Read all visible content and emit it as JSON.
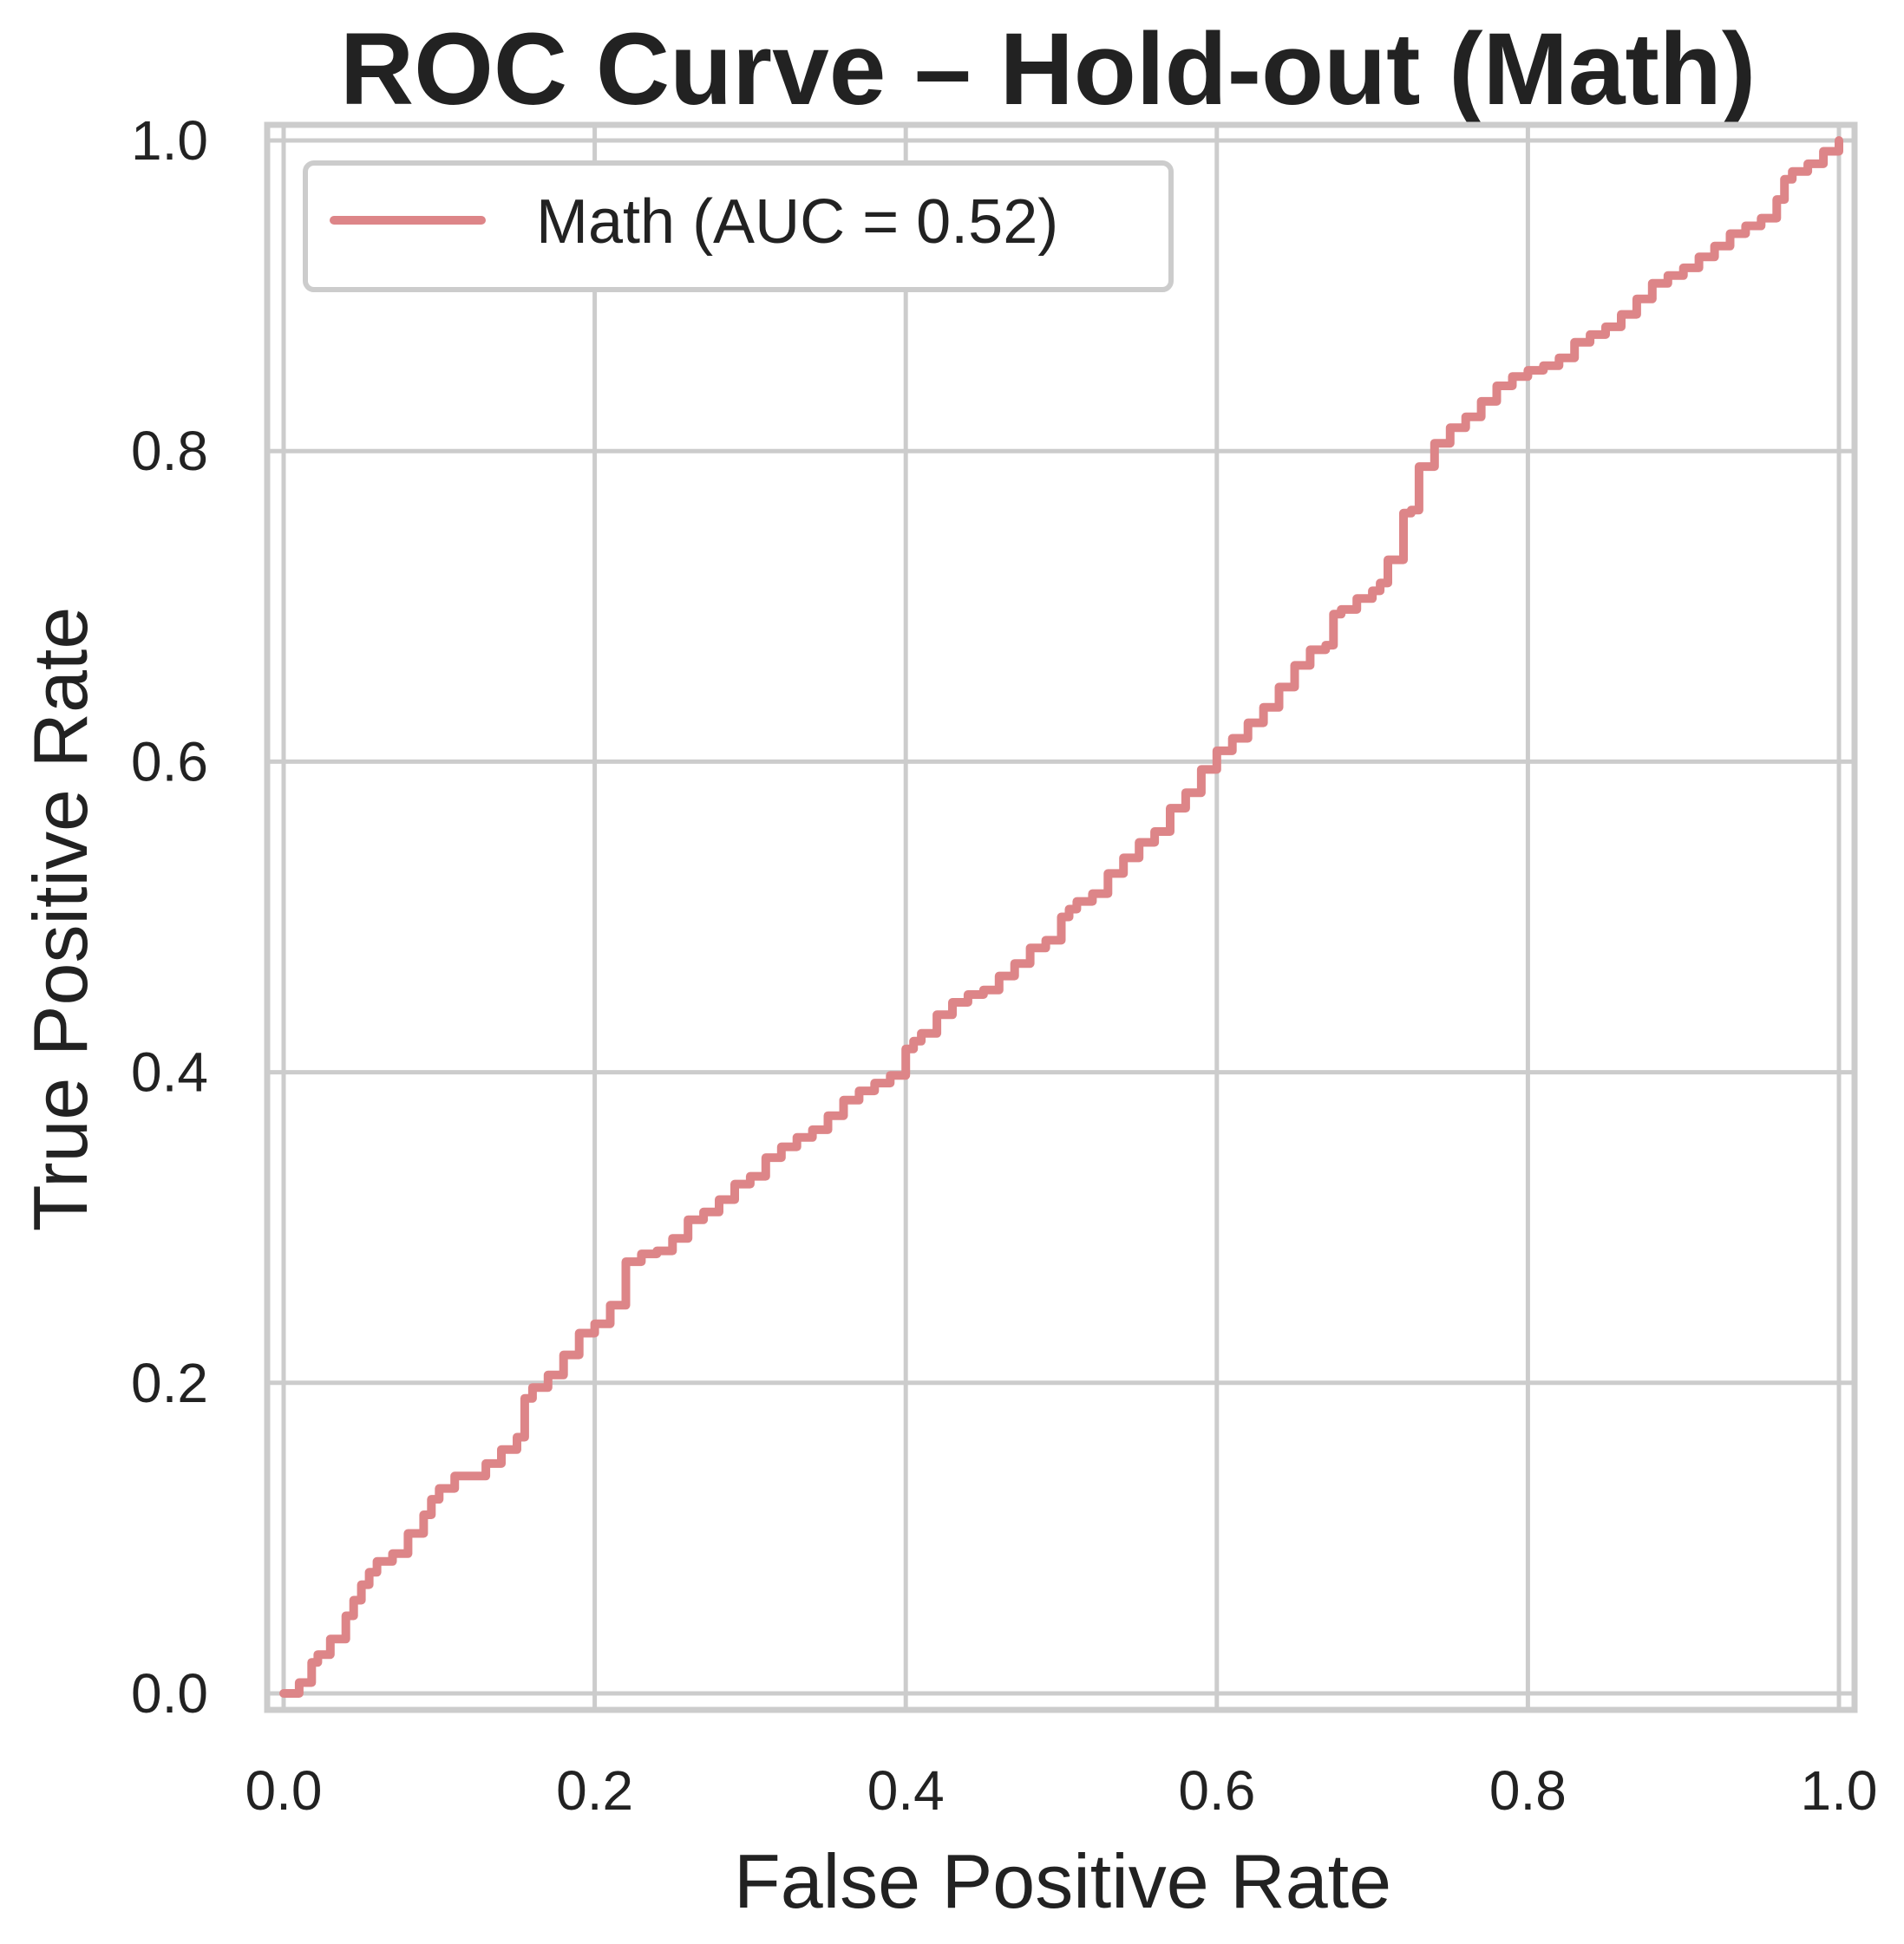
{
  "chart_data": {
    "type": "line",
    "title": "ROC Curve – Hold-out (Math)",
    "xlabel": "False Positive Rate",
    "ylabel": "True Positive Rate",
    "xlim": [
      0.0,
      1.0
    ],
    "ylim": [
      0.0,
      1.0
    ],
    "xticks": [
      "0.0",
      "0.2",
      "0.4",
      "0.6",
      "0.8",
      "1.0"
    ],
    "yticks": [
      "0.0",
      "0.2",
      "0.4",
      "0.6",
      "0.8",
      "1.0"
    ],
    "grid": true,
    "legend_position": "top-left",
    "series": [
      {
        "name": "Math (AUC = 0.52)",
        "color": "#dd8588",
        "x": [
          0.0,
          0.01,
          0.018,
          0.022,
          0.03,
          0.04,
          0.045,
          0.05,
          0.055,
          0.06,
          0.07,
          0.08,
          0.09,
          0.095,
          0.1,
          0.11,
          0.12,
          0.13,
          0.14,
          0.15,
          0.155,
          0.16,
          0.17,
          0.18,
          0.19,
          0.2,
          0.21,
          0.22,
          0.23,
          0.24,
          0.25,
          0.26,
          0.27,
          0.28,
          0.29,
          0.3,
          0.31,
          0.32,
          0.33,
          0.34,
          0.35,
          0.36,
          0.37,
          0.38,
          0.39,
          0.4,
          0.405,
          0.41,
          0.42,
          0.43,
          0.44,
          0.45,
          0.46,
          0.47,
          0.48,
          0.49,
          0.5,
          0.505,
          0.51,
          0.52,
          0.53,
          0.54,
          0.55,
          0.56,
          0.57,
          0.58,
          0.59,
          0.6,
          0.61,
          0.62,
          0.63,
          0.64,
          0.65,
          0.66,
          0.67,
          0.675,
          0.68,
          0.69,
          0.7,
          0.705,
          0.71,
          0.72,
          0.725,
          0.73,
          0.74,
          0.75,
          0.76,
          0.77,
          0.78,
          0.79,
          0.8,
          0.81,
          0.82,
          0.83,
          0.84,
          0.85,
          0.86,
          0.87,
          0.88,
          0.89,
          0.9,
          0.91,
          0.92,
          0.93,
          0.94,
          0.95,
          0.96,
          0.965,
          0.97,
          0.98,
          0.99,
          1.0
        ],
        "y": [
          0.0,
          0.007,
          0.02,
          0.025,
          0.035,
          0.05,
          0.06,
          0.07,
          0.078,
          0.085,
          0.09,
          0.103,
          0.115,
          0.125,
          0.132,
          0.14,
          0.14,
          0.148,
          0.157,
          0.165,
          0.19,
          0.197,
          0.205,
          0.218,
          0.232,
          0.238,
          0.25,
          0.278,
          0.283,
          0.285,
          0.293,
          0.305,
          0.31,
          0.318,
          0.328,
          0.333,
          0.345,
          0.352,
          0.358,
          0.363,
          0.372,
          0.382,
          0.388,
          0.393,
          0.398,
          0.415,
          0.42,
          0.425,
          0.437,
          0.445,
          0.45,
          0.453,
          0.462,
          0.47,
          0.48,
          0.485,
          0.5,
          0.505,
          0.51,
          0.515,
          0.528,
          0.538,
          0.548,
          0.555,
          0.57,
          0.58,
          0.595,
          0.607,
          0.615,
          0.625,
          0.635,
          0.648,
          0.662,
          0.672,
          0.675,
          0.695,
          0.698,
          0.705,
          0.71,
          0.715,
          0.73,
          0.76,
          0.762,
          0.79,
          0.805,
          0.815,
          0.822,
          0.832,
          0.842,
          0.848,
          0.852,
          0.855,
          0.86,
          0.87,
          0.875,
          0.88,
          0.888,
          0.898,
          0.908,
          0.913,
          0.918,
          0.925,
          0.932,
          0.94,
          0.945,
          0.95,
          0.962,
          0.975,
          0.98,
          0.985,
          0.993,
          1.0
        ]
      }
    ]
  }
}
